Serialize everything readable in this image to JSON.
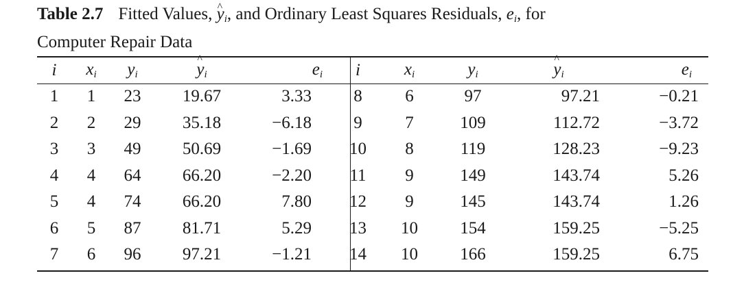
{
  "caption": {
    "label": "Table 2.7",
    "text_before": "Fitted Values, ",
    "text_mid": ", and Ordinary Least Squares Residuals, ",
    "text_after": ", for",
    "line2": "Computer Repair Data"
  },
  "headers": {
    "i": "i",
    "x": "x",
    "y": "y",
    "yhat": "y",
    "e": "e",
    "sub": "i"
  },
  "rows_left": [
    {
      "i": "1",
      "x": "1",
      "y": "23",
      "yhat": "19.67",
      "e": "3.33"
    },
    {
      "i": "2",
      "x": "2",
      "y": "29",
      "yhat": "35.18",
      "e": "−6.18"
    },
    {
      "i": "3",
      "x": "3",
      "y": "49",
      "yhat": "50.69",
      "e": "−1.69"
    },
    {
      "i": "4",
      "x": "4",
      "y": "64",
      "yhat": "66.20",
      "e": "−2.20"
    },
    {
      "i": "5",
      "x": "4",
      "y": "74",
      "yhat": "66.20",
      "e": "7.80"
    },
    {
      "i": "6",
      "x": "5",
      "y": "87",
      "yhat": "81.71",
      "e": "5.29"
    },
    {
      "i": "7",
      "x": "6",
      "y": "96",
      "yhat": "97.21",
      "e": "−1.21"
    }
  ],
  "rows_right": [
    {
      "i": "8",
      "x": "6",
      "y": "97",
      "yhat": "97.21",
      "e": "−0.21"
    },
    {
      "i": "9",
      "x": "7",
      "y": "109",
      "yhat": "112.72",
      "e": "−3.72"
    },
    {
      "i": "10",
      "x": "8",
      "y": "119",
      "yhat": "128.23",
      "e": "−9.23"
    },
    {
      "i": "11",
      "x": "9",
      "y": "149",
      "yhat": "143.74",
      "e": "5.26"
    },
    {
      "i": "12",
      "x": "9",
      "y": "145",
      "yhat": "143.74",
      "e": "1.26"
    },
    {
      "i": "13",
      "x": "10",
      "y": "154",
      "yhat": "159.25",
      "e": "−5.25"
    },
    {
      "i": "14",
      "x": "10",
      "y": "166",
      "yhat": "159.25",
      "e": "6.75"
    }
  ]
}
